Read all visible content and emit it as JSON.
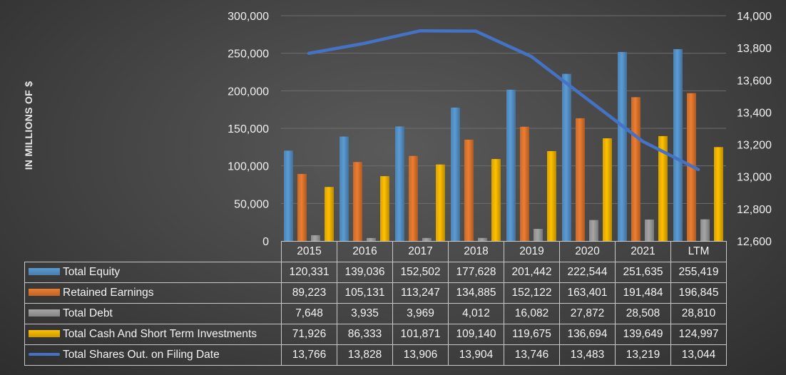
{
  "colors": {
    "total_equity": "#5b9bd5",
    "retained_earnings": "#ed7d31",
    "total_debt": "#a5a5a5",
    "total_cash": "#ffc000",
    "shares_out": "#4472c4"
  },
  "chart_data": {
    "type": "bar",
    "ylabel": "IN MILLIONS OF $",
    "categories": [
      "2015",
      "2016",
      "2017",
      "2018",
      "2019",
      "2020",
      "2021",
      "LTM"
    ],
    "ylim": [
      0,
      300000
    ],
    "y_ticks": [
      "0",
      "50,000",
      "100,000",
      "150,000",
      "200,000",
      "250,000",
      "300,000"
    ],
    "y2lim": [
      12600,
      14000
    ],
    "y2_ticks": [
      "12,600",
      "12,800",
      "13,000",
      "13,200",
      "13,400",
      "13,600",
      "13,800",
      "14,000"
    ],
    "series": [
      {
        "name": "Total Equity",
        "kind": "bar",
        "axis": "left",
        "color_key": "total_equity",
        "values": [
          120331,
          139036,
          152502,
          177628,
          201442,
          222544,
          251635,
          255419
        ],
        "labels": [
          "120,331",
          "139,036",
          "152,502",
          "177,628",
          "201,442",
          "222,544",
          "251,635",
          "255,419"
        ]
      },
      {
        "name": "Retained Earnings",
        "kind": "bar",
        "axis": "left",
        "color_key": "retained_earnings",
        "values": [
          89223,
          105131,
          113247,
          134885,
          152122,
          163401,
          191484,
          196845
        ],
        "labels": [
          "89,223",
          "105,131",
          "113,247",
          "134,885",
          "152,122",
          "163,401",
          "191,484",
          "196,845"
        ]
      },
      {
        "name": "Total Debt",
        "kind": "bar",
        "axis": "left",
        "color_key": "total_debt",
        "values": [
          7648,
          3935,
          3969,
          4012,
          16082,
          27872,
          28508,
          28810
        ],
        "labels": [
          "7,648",
          "3,935",
          "3,969",
          "4,012",
          "16,082",
          "27,872",
          "28,508",
          "28,810"
        ]
      },
      {
        "name": "Total Cash And Short Term Investments",
        "kind": "bar",
        "axis": "left",
        "color_key": "total_cash",
        "values": [
          71926,
          86333,
          101871,
          109140,
          119675,
          136694,
          139649,
          124997
        ],
        "labels": [
          "71,926",
          "86,333",
          "101,871",
          "109,140",
          "119,675",
          "136,694",
          "139,649",
          "124,997"
        ]
      },
      {
        "name": "Total Shares Out. on Filing Date",
        "kind": "line",
        "axis": "right",
        "color_key": "shares_out",
        "values": [
          13766,
          13828,
          13906,
          13904,
          13746,
          13483,
          13219,
          13044
        ],
        "labels": [
          "13,766",
          "13,828",
          "13,906",
          "13,904",
          "13,746",
          "13,483",
          "13,219",
          "13,044"
        ]
      }
    ]
  }
}
